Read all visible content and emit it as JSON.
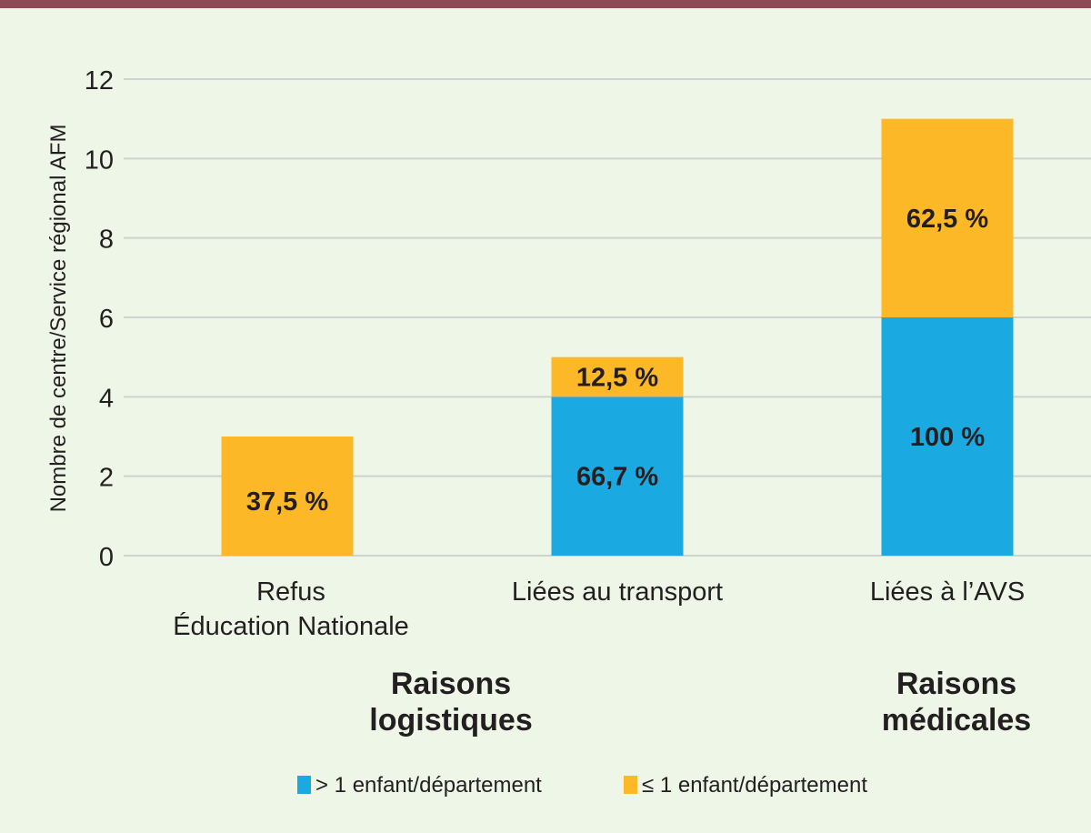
{
  "chart_data": {
    "type": "bar",
    "stacked": true,
    "ylabel": "Nombre de centre/Service régional AFM",
    "xlabel": "",
    "ylim": [
      0,
      12
    ],
    "yticks": [
      0,
      2,
      4,
      6,
      8,
      10,
      12
    ],
    "grid": true,
    "categories": [
      [
        "Refus",
        "Éducation Nationale"
      ],
      [
        "Liées au transport"
      ],
      [
        "Liées à l’AVS"
      ]
    ],
    "series": [
      {
        "name": "> 1 enfant/département",
        "color": "#1aa9e1",
        "values": [
          0,
          4,
          6
        ],
        "labels": [
          "",
          "66,7 %",
          "100 %"
        ]
      },
      {
        "name": "≤ 1 enfant/département",
        "color": "#fdb827",
        "values": [
          3,
          1,
          5
        ],
        "labels": [
          "37,5 %",
          "12,5 %",
          "62,5 %"
        ]
      }
    ],
    "groups": [
      {
        "label": [
          "Raisons",
          "logistiques"
        ]
      },
      {
        "label": [
          "Raisons",
          "médicales"
        ]
      }
    ],
    "legend_position": "bottom"
  },
  "colors": {
    "top_border": "#8e4a55",
    "background": "#eef6e8",
    "grid": "#cfd2cf"
  }
}
